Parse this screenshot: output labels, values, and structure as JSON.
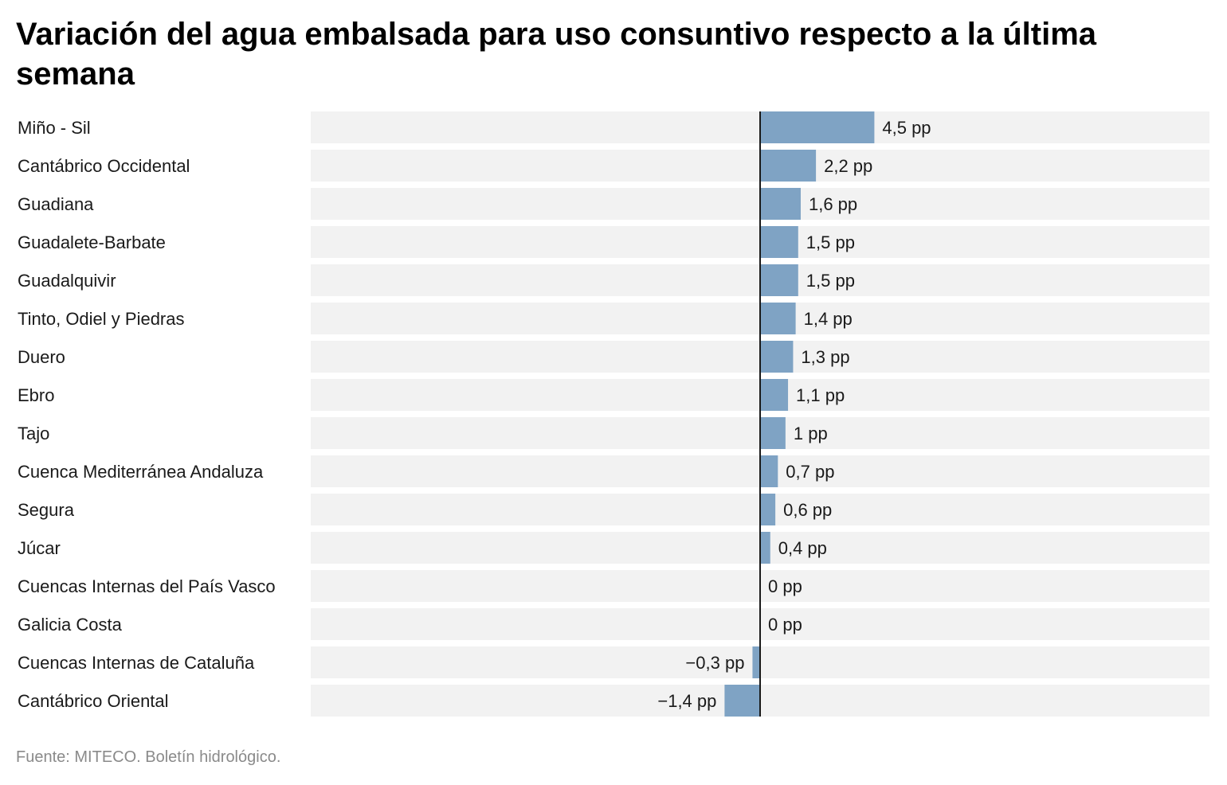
{
  "chart_data": {
    "type": "bar",
    "orientation": "horizontal",
    "title": "Variación del agua embalsada para uso consuntivo respecto a la última semana",
    "source": "Fuente: MITECO. Boletín hidrológico.",
    "unit": "pp",
    "xlim": [
      -17.7,
      17.7
    ],
    "bar_color": "#7fa3c4",
    "track_color": "#f2f2f2",
    "categories": [
      "Miño - Sil",
      "Cantábrico Occidental",
      "Guadiana",
      "Guadalete-Barbate",
      "Guadalquivir",
      "Tinto, Odiel y Piedras",
      "Duero",
      "Ebro",
      "Tajo",
      "Cuenca Mediterránea Andaluza",
      "Segura",
      "Júcar",
      "Cuencas Internas del País Vasco",
      "Galicia Costa",
      "Cuencas Internas de Cataluña",
      "Cantábrico Oriental"
    ],
    "values": [
      4.5,
      2.2,
      1.6,
      1.5,
      1.5,
      1.4,
      1.3,
      1.1,
      1.0,
      0.7,
      0.6,
      0.4,
      0,
      0,
      -0.3,
      -1.4
    ],
    "value_labels": [
      "4,5 pp",
      "2,2 pp",
      "1,6 pp",
      "1,5 pp",
      "1,5 pp",
      "1,4 pp",
      "1,3 pp",
      "1,1 pp",
      "1 pp",
      "0,7 pp",
      "0,6 pp",
      "0,4 pp",
      "0 pp",
      "0 pp",
      "−0,3 pp",
      "−1,4 pp"
    ]
  }
}
